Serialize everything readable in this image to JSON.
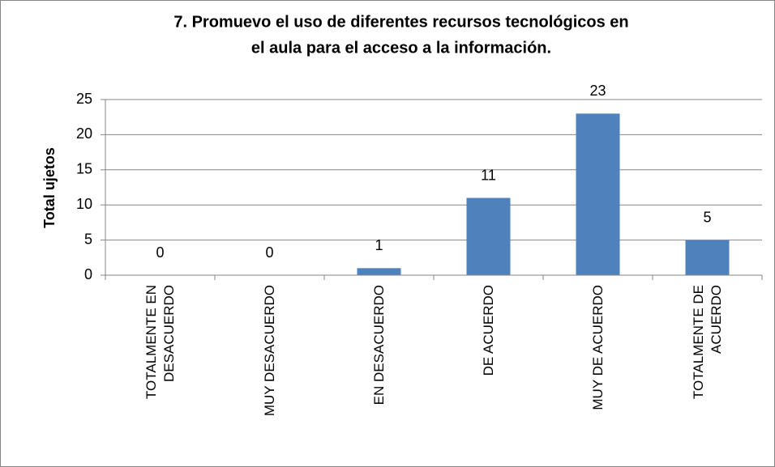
{
  "chart_data": {
    "type": "bar",
    "title": [
      "7. Promuevo el uso de diferentes recursos tecnológicos en",
      "el aula para el acceso a la información."
    ],
    "y_label": "Total ujetos",
    "categories": [
      "TOTALMENTE EN DESACUERDO",
      "MUY DESACUERDO",
      "EN DESACUERDO",
      "DE ACUERDO",
      "MUY DE ACUERDO",
      "TOTALMENTE DE ACUERDO"
    ],
    "values": [
      0,
      0,
      1,
      11,
      23,
      5
    ],
    "color": "#4f81bd",
    "ylim": [
      0,
      25
    ],
    "yticks": [
      0,
      5,
      10,
      15,
      20,
      25
    ],
    "grid": true
  }
}
